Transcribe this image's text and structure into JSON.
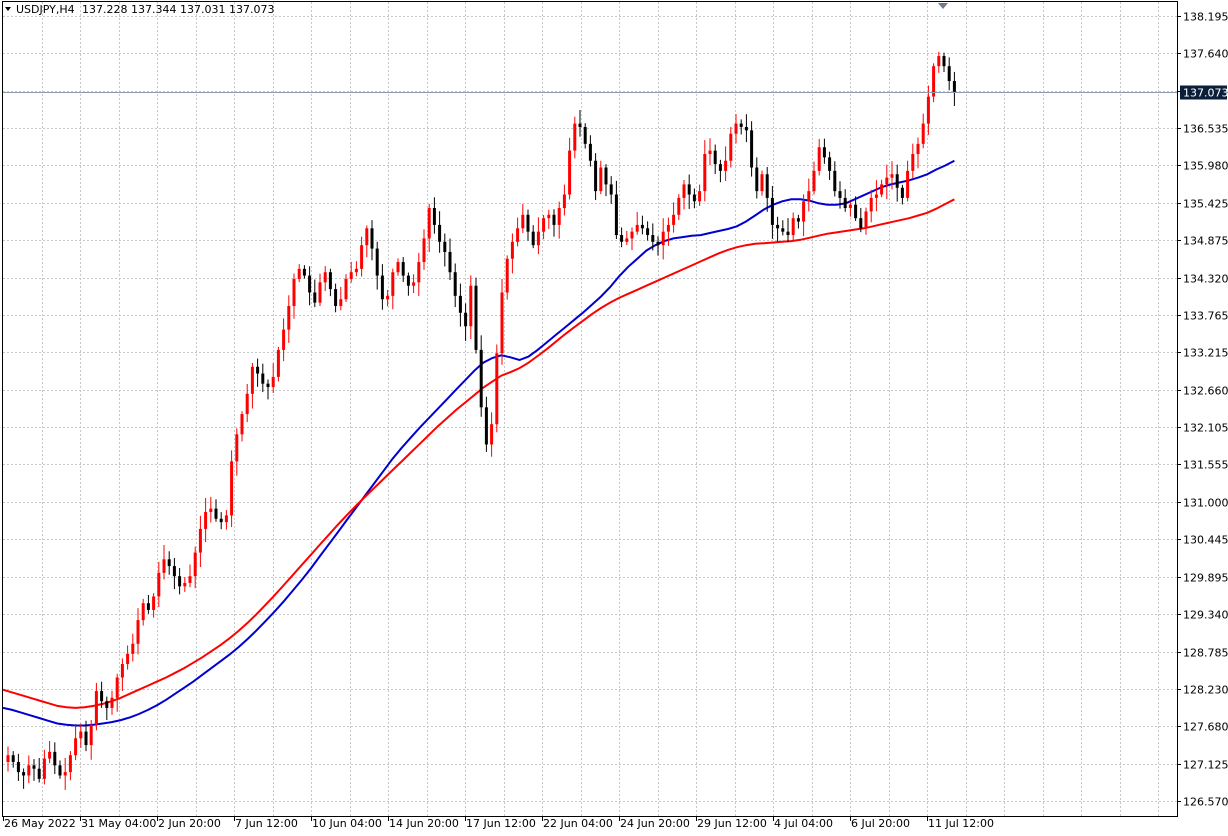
{
  "header": {
    "symbol": "USDJPY,H4",
    "ohlc": "137.228 137.344 137.031 137.073"
  },
  "colors": {
    "background": "#ffffff",
    "grid": "#c8c8c8",
    "bull_candle": "#ff0000",
    "bear_candle": "#000000",
    "ma_fast": "#0000d0",
    "ma_slow": "#ff0000",
    "current_price_line": "#8c9ab0",
    "price_tag_bg": "#0b1f3a"
  },
  "current_price_tag": "137.073",
  "chart_data": {
    "type": "candlestick",
    "title": "USDJPY,H4",
    "grid": true,
    "ylim": [
      126.35,
      138.4
    ],
    "y_ticks": [
      "138.195",
      "137.640",
      "137.085",
      "136.535",
      "135.980",
      "135.425",
      "134.875",
      "134.320",
      "133.765",
      "133.215",
      "132.660",
      "132.105",
      "131.555",
      "131.000",
      "130.445",
      "129.895",
      "129.340",
      "128.785",
      "128.230",
      "127.680",
      "127.125",
      "126.570"
    ],
    "x_labels": [
      "26 May 2022",
      "31 May 04:00",
      "2 Jun 20:00",
      "7 Jun 12:00",
      "10 Jun 04:00",
      "14 Jun 20:00",
      "17 Jun 12:00",
      "22 Jun 04:00",
      "24 Jun 20:00",
      "29 Jun 12:00",
      "4 Jul 04:00",
      "6 Jul 20:00",
      "11 Jul 12:00"
    ],
    "current_price": 137.073,
    "close_path": [
      127.25,
      127.15,
      127.0,
      126.95,
      127.1,
      127.05,
      126.9,
      127.2,
      127.3,
      127.1,
      126.95,
      127.0,
      127.25,
      127.5,
      127.6,
      127.4,
      127.7,
      128.2,
      128.05,
      127.95,
      128.1,
      128.4,
      128.6,
      128.75,
      128.9,
      129.25,
      129.5,
      129.4,
      129.6,
      129.95,
      130.15,
      130.05,
      129.9,
      129.75,
      129.8,
      129.9,
      130.25,
      130.6,
      130.85,
      130.9,
      130.75,
      130.7,
      130.8,
      131.6,
      132.0,
      132.3,
      132.6,
      133.0,
      132.9,
      132.75,
      132.7,
      132.85,
      133.25,
      133.55,
      133.9,
      134.3,
      134.45,
      134.35,
      134.1,
      133.95,
      134.25,
      134.4,
      134.15,
      133.9,
      134.0,
      134.3,
      134.4,
      134.45,
      134.8,
      135.05,
      134.75,
      134.35,
      134.0,
      134.05,
      134.4,
      134.55,
      134.35,
      134.2,
      134.25,
      134.55,
      134.9,
      135.35,
      135.1,
      134.85,
      134.7,
      134.4,
      134.05,
      133.8,
      133.6,
      134.2,
      133.25,
      132.4,
      131.85,
      132.15,
      133.2,
      134.1,
      134.6,
      134.85,
      135.05,
      135.25,
      135.0,
      134.8,
      135.0,
      135.2,
      135.25,
      135.1,
      135.35,
      135.55,
      136.2,
      136.6,
      136.55,
      136.3,
      136.05,
      135.6,
      135.95,
      135.7,
      135.55,
      134.95,
      134.85,
      134.9,
      135.0,
      135.1,
      135.05,
      134.95,
      134.85,
      134.8,
      135.0,
      135.1,
      135.25,
      135.5,
      135.7,
      135.55,
      135.45,
      135.6,
      136.15,
      136.2,
      136.0,
      135.9,
      136.05,
      136.45,
      136.6,
      136.55,
      136.5,
      135.95,
      135.6,
      135.85,
      135.5,
      135.1,
      135.05,
      135.0,
      134.95,
      135.2,
      135.15,
      135.45,
      135.6,
      135.9,
      136.25,
      136.1,
      135.9,
      135.6,
      135.5,
      135.35,
      135.4,
      135.2,
      135.05,
      135.3,
      135.5,
      135.55,
      135.7,
      135.8,
      135.85,
      135.65,
      135.5,
      135.9,
      136.15,
      136.3,
      136.6,
      137.0,
      137.45,
      137.6,
      137.45,
      137.23,
      137.07
    ],
    "series": [
      {
        "name": "",
        "type": "ma",
        "color": "#0000d0",
        "values": [
          127.95,
          127.92,
          127.88,
          127.84,
          127.8,
          127.76,
          127.72,
          127.7,
          127.69,
          127.69,
          127.7,
          127.72,
          127.74,
          127.77,
          127.81,
          127.86,
          127.92,
          127.99,
          128.07,
          128.16,
          128.25,
          128.34,
          128.44,
          128.54,
          128.64,
          128.74,
          128.85,
          128.97,
          129.1,
          129.24,
          129.38,
          129.53,
          129.69,
          129.85,
          130.02,
          130.2,
          130.38,
          130.56,
          130.74,
          130.92,
          131.1,
          131.28,
          131.46,
          131.64,
          131.8,
          131.95,
          132.1,
          132.24,
          132.38,
          132.52,
          132.66,
          132.8,
          132.94,
          133.06,
          133.13,
          133.17,
          133.14,
          133.1,
          133.15,
          133.25,
          133.36,
          133.47,
          133.58,
          133.69,
          133.8,
          133.92,
          134.04,
          134.18,
          134.34,
          134.48,
          134.6,
          134.72,
          134.8,
          134.86,
          134.9,
          134.92,
          134.94,
          134.95,
          134.98,
          135.01,
          135.04,
          135.08,
          135.15,
          135.24,
          135.33,
          135.4,
          135.45,
          135.48,
          135.48,
          135.46,
          135.42,
          135.4,
          135.4,
          135.42,
          135.48,
          135.54,
          135.6,
          135.66,
          135.7,
          135.73,
          135.76,
          135.8,
          135.85,
          135.92,
          135.98,
          136.05
        ],
        "x_start_index": 0
      },
      {
        "name": "",
        "type": "ma",
        "color": "#ff0000",
        "values": [
          128.22,
          128.18,
          128.14,
          128.1,
          128.06,
          128.02,
          127.98,
          127.96,
          127.95,
          127.96,
          127.98,
          128.01,
          128.05,
          128.1,
          128.16,
          128.22,
          128.28,
          128.34,
          128.4,
          128.47,
          128.54,
          128.62,
          128.7,
          128.79,
          128.88,
          128.98,
          129.09,
          129.21,
          129.34,
          129.48,
          129.62,
          129.77,
          129.92,
          130.07,
          130.22,
          130.37,
          130.52,
          130.67,
          130.81,
          130.95,
          131.08,
          131.21,
          131.34,
          131.47,
          131.6,
          131.73,
          131.86,
          131.99,
          132.12,
          132.24,
          132.36,
          132.47,
          132.58,
          132.69,
          132.78,
          132.87,
          132.92,
          132.98,
          133.06,
          133.16,
          133.26,
          133.37,
          133.48,
          133.58,
          133.68,
          133.78,
          133.87,
          133.95,
          134.02,
          134.08,
          134.14,
          134.2,
          134.26,
          134.32,
          134.38,
          134.44,
          134.5,
          134.56,
          134.62,
          134.68,
          134.73,
          134.77,
          134.8,
          134.82,
          134.83,
          134.84,
          134.85,
          134.86,
          134.88,
          134.91,
          134.94,
          134.97,
          134.99,
          135.01,
          135.03,
          135.05,
          135.08,
          135.11,
          135.14,
          135.17,
          135.2,
          135.24,
          135.28,
          135.34,
          135.41,
          135.48
        ],
        "x_start_index": 0
      }
    ]
  }
}
